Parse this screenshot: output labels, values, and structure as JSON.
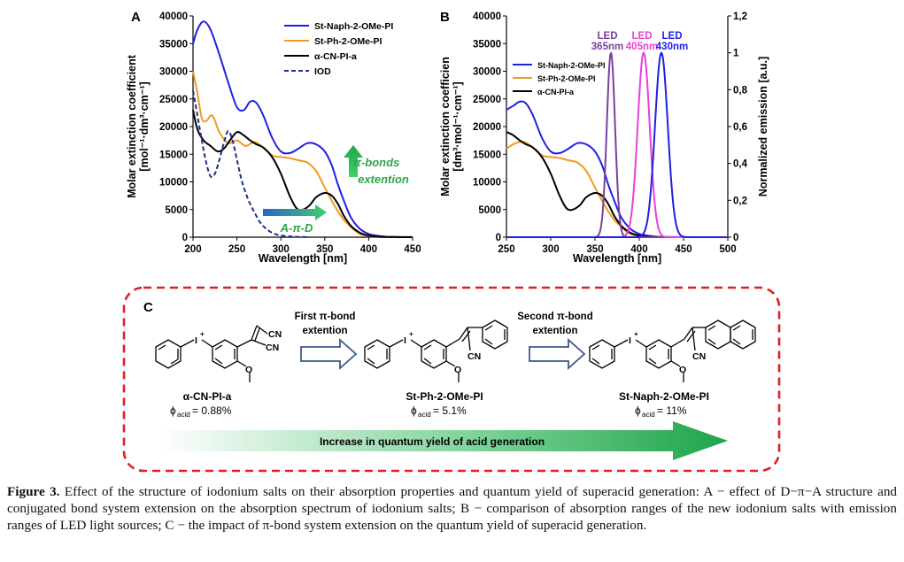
{
  "panelA": {
    "label": "A",
    "ylabel_line1": "Molar extinction coefficient",
    "ylabel_line2": "[mol⁻¹·dm³·cm⁻¹]",
    "xlabel": "Wavelength [nm]",
    "arrow_up_line1": "π-bonds",
    "arrow_up_line2": "extention",
    "arrow_right_label": "A-π-D"
  },
  "panelB": {
    "label": "B",
    "ylabel_left_line1": "Molar extinction coefficien",
    "ylabel_left_line2": "[dm³·mol⁻¹·cm⁻¹]",
    "ylabel_right": "Normalized emission [a.u.]",
    "xlabel": "Wavelength [nm]",
    "led1_line1": "LED",
    "led1_line2": "365nm",
    "led2_line1": "LED",
    "led2_line2": "405nm",
    "led3_line1": "LED",
    "led3_line2": "430nm"
  },
  "panelC": {
    "label": "C",
    "step1_line1": "First π-bond",
    "step1_line2": "extention",
    "step2_line1": "Second π-bond",
    "step2_line2": "extention",
    "mol1_name": "α-CN-PI-a",
    "mol1_phi": "= 0.88%",
    "mol2_name": "St-Ph-2-OMe-PI",
    "mol2_phi": "= 5.1%",
    "mol3_name": "St-Naph-2-OMe-PI",
    "mol3_phi": "= 11%",
    "phi_symbol": "ϕ",
    "phi_sub": "acid",
    "gradient_label": "Increase in quantum yield of acid generation",
    "atom_I": "I",
    "atom_plus": "+",
    "atom_CN": "CN",
    "atom_O": "O"
  },
  "caption": {
    "label": "Figure 3.",
    "text": "Effect of the structure of iodonium salts on their absorption properties and quantum yield of superacid generation: A − effect of D−π−A structure and conjugated bond system extension on the absorption spectrum of iodonium salts; B − comparison of absorption ranges of the new iodonium salts with emission ranges of LED light sources; C − the impact of π-bond system extension on the quantum yield of superacid generation."
  },
  "colors": {
    "naph": "#1f1fe6",
    "ph": "#f29a1f",
    "cn": "#000000",
    "iod": "#1f2f8a",
    "led365": "#7a3fa0",
    "led405": "#ea3fd8",
    "led430": "#1f1fe6",
    "green": "#2aa84a",
    "dashed_box": "#e02020",
    "arrow_outline": "#3a5a8a"
  },
  "chart_data": [
    {
      "type": "line",
      "panel": "A",
      "xlabel": "Wavelength [nm]",
      "ylabel": "Molar extinction coefficient [mol⁻¹·dm³·cm⁻¹]",
      "xlim": [
        200,
        450
      ],
      "ylim": [
        0,
        40000
      ],
      "xticks": [
        200,
        250,
        300,
        350,
        400,
        450
      ],
      "yticks": [
        0,
        5000,
        10000,
        15000,
        20000,
        25000,
        30000,
        35000,
        40000
      ],
      "legend_position": "top-right",
      "series": [
        {
          "name": "St-Naph-2-OMe-PI",
          "style": "solid",
          "x": [
            200,
            205,
            212,
            220,
            230,
            240,
            250,
            258,
            265,
            272,
            280,
            290,
            300,
            310,
            320,
            330,
            340,
            350,
            358,
            365,
            372,
            380,
            390,
            400,
            410,
            420,
            430,
            440,
            450
          ],
          "y": [
            35000,
            37500,
            39000,
            37500,
            33000,
            28000,
            23500,
            23000,
            24500,
            24300,
            22000,
            18000,
            15500,
            15200,
            16000,
            17000,
            16800,
            15500,
            13000,
            9500,
            6500,
            3500,
            1500,
            600,
            250,
            100,
            50,
            20,
            10
          ]
        },
        {
          "name": "St-Ph-2-OMe-PI",
          "style": "solid",
          "x": [
            200,
            205,
            210,
            215,
            222,
            230,
            240,
            250,
            260,
            270,
            280,
            290,
            300,
            310,
            320,
            330,
            340,
            350,
            360,
            370,
            380,
            390,
            400,
            410,
            420,
            430,
            440,
            450
          ],
          "y": [
            30000,
            26000,
            21500,
            21000,
            22000,
            19000,
            17000,
            17500,
            16500,
            17200,
            16200,
            14800,
            14500,
            14300,
            13900,
            13500,
            12000,
            9000,
            6000,
            3500,
            1800,
            600,
            200,
            80,
            30,
            10,
            5,
            0
          ]
        },
        {
          "name": "α-CN-PI-a",
          "style": "solid",
          "x": [
            200,
            205,
            212,
            220,
            228,
            235,
            242,
            250,
            257,
            265,
            272,
            280,
            290,
            300,
            310,
            318,
            325,
            333,
            340,
            350,
            358,
            365,
            372,
            380,
            390,
            400,
            410,
            420,
            430,
            440,
            450
          ],
          "y": [
            23000,
            19500,
            17500,
            16500,
            15500,
            16000,
            17500,
            19000,
            18500,
            17500,
            16800,
            16200,
            14500,
            11500,
            7500,
            5200,
            5000,
            5800,
            7200,
            8000,
            7500,
            6000,
            3800,
            2000,
            800,
            300,
            100,
            40,
            10,
            0,
            0
          ]
        },
        {
          "name": "IOD",
          "style": "dashed",
          "x": [
            200,
            205,
            210,
            215,
            220,
            225,
            230,
            235,
            240,
            245,
            250,
            255,
            260,
            265,
            270,
            275,
            280,
            285,
            290,
            295,
            300,
            310,
            320,
            330
          ],
          "y": [
            26500,
            22000,
            17500,
            13500,
            11000,
            11500,
            14000,
            17000,
            19200,
            17500,
            14000,
            10500,
            8000,
            6000,
            4500,
            3000,
            2000,
            1300,
            800,
            500,
            300,
            150,
            50,
            20
          ]
        }
      ]
    },
    {
      "type": "line",
      "panel": "B",
      "xlabel": "Wavelength [nm]",
      "ylabel_left": "Molar extinction coefficien [dm³·mol⁻¹·cm⁻¹]",
      "ylabel_right": "Normalized emission [a.u.]",
      "xlim": [
        250,
        500
      ],
      "ylim": [
        0,
        40000
      ],
      "ylim_right": [
        0,
        1.2
      ],
      "xticks": [
        250,
        300,
        350,
        400,
        450,
        500
      ],
      "yticks": [
        0,
        5000,
        10000,
        15000,
        20000,
        25000,
        30000,
        35000,
        40000
      ],
      "yticks_right": [
        "0",
        "0,2",
        "0,4",
        "0,6",
        "0,8",
        "1",
        "1,2"
      ],
      "legend_position": "middle-left",
      "series": [
        {
          "name": "St-Naph-2-OMe-PI",
          "axis": "left",
          "x": [
            250,
            258,
            265,
            272,
            280,
            290,
            300,
            310,
            320,
            330,
            340,
            350,
            358,
            365,
            372,
            380,
            390,
            400,
            410,
            420,
            430,
            440,
            450,
            470,
            500
          ],
          "y": [
            23000,
            23800,
            24500,
            24200,
            22000,
            18000,
            15500,
            15200,
            16000,
            17000,
            16800,
            15500,
            13000,
            9500,
            6500,
            3500,
            1500,
            600,
            250,
            100,
            50,
            20,
            10,
            0,
            0
          ]
        },
        {
          "name": "St-Ph-2-OMe-PI",
          "axis": "left",
          "x": [
            250,
            260,
            270,
            280,
            290,
            300,
            310,
            320,
            330,
            340,
            350,
            360,
            370,
            380,
            390,
            400,
            410,
            420,
            430,
            450,
            500
          ],
          "y": [
            16000,
            17000,
            17200,
            16200,
            14800,
            14500,
            14300,
            13900,
            13500,
            12000,
            9000,
            6000,
            3500,
            1800,
            600,
            200,
            80,
            30,
            10,
            0,
            0
          ]
        },
        {
          "name": "α-CN-PI-a",
          "axis": "left",
          "x": [
            250,
            257,
            265,
            272,
            280,
            290,
            300,
            310,
            318,
            325,
            333,
            340,
            350,
            358,
            365,
            372,
            380,
            390,
            400,
            410,
            420,
            440,
            500
          ],
          "y": [
            19000,
            18500,
            17500,
            16800,
            16200,
            14500,
            11500,
            7500,
            5200,
            5000,
            5800,
            7200,
            8000,
            7500,
            6000,
            3800,
            2000,
            800,
            300,
            100,
            40,
            0,
            0
          ]
        },
        {
          "name": "LED 365nm",
          "axis": "right",
          "peak": 368,
          "fwhm": 11
        },
        {
          "name": "LED 405nm",
          "axis": "right",
          "peak": 405,
          "fwhm": 16
        },
        {
          "name": "LED 430nm",
          "axis": "right",
          "peak": 425,
          "fwhm": 17
        }
      ]
    }
  ]
}
